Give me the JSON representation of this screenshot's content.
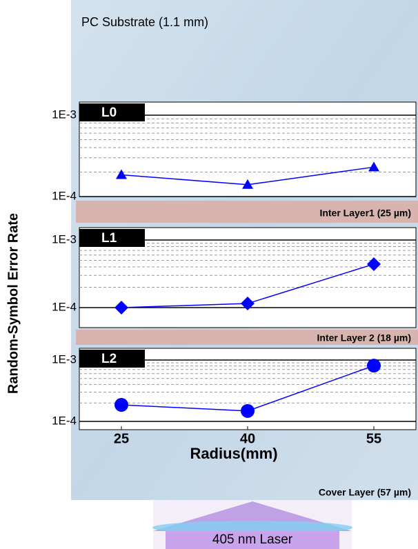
{
  "substrate_label": "PC Substrate (1.1 mm)",
  "y_label": "Random-Symbol Error Rate",
  "inter_layer_labels": [
    "Inter Layer1 (25 µm)",
    "Inter Layer 2 (18 µm)"
  ],
  "cover_label": "Cover Layer (57 µm)",
  "laser_label": "405 nm Laser",
  "chart_data": [
    {
      "type": "line",
      "title": "L0",
      "marker": "triangle",
      "x": [
        25,
        40,
        55
      ],
      "series": [
        {
          "color": "#0000ff",
          "values": [
            0.000185,
            0.00014,
            0.00023
          ]
        }
      ],
      "xlim": [
        20,
        60
      ],
      "ylim": [
        0.0001,
        0.001
      ],
      "log_y": true,
      "yticks": [
        {
          "value": 0.0001,
          "label": "1E-4"
        },
        {
          "value": 0.001,
          "label": "1E-3"
        }
      ],
      "minor_yticks": [
        0.0002,
        0.0003,
        0.0004,
        0.0005,
        0.0006,
        0.0007,
        0.0008,
        0.0009
      ],
      "grid": true
    },
    {
      "type": "line",
      "title": "L1",
      "marker": "diamond",
      "x": [
        25,
        40,
        55
      ],
      "series": [
        {
          "color": "#0000ff",
          "values": [
            0.0001,
            0.000115,
            0.00044
          ]
        }
      ],
      "xlim": [
        20,
        60
      ],
      "ylim": [
        0.0001,
        0.001
      ],
      "log_y": true,
      "yticks": [
        {
          "value": 0.0001,
          "label": "1E-4"
        },
        {
          "value": 0.001,
          "label": "1E-3"
        }
      ],
      "minor_yticks": [
        0.0002,
        0.0003,
        0.0004,
        0.0005,
        0.0006,
        0.0007,
        0.0008,
        0.0009
      ],
      "grid": true
    },
    {
      "type": "line",
      "title": "L2",
      "marker": "circle",
      "x": [
        25,
        40,
        55
      ],
      "series": [
        {
          "color": "#0000ff",
          "values": [
            0.000186,
            0.000148,
            0.00081
          ]
        }
      ],
      "xlim": [
        20,
        60
      ],
      "ylim": [
        0.0001,
        0.001
      ],
      "log_y": true,
      "yticks": [
        {
          "value": 0.0001,
          "label": "1E-4"
        },
        {
          "value": 0.001,
          "label": "1E-3"
        }
      ],
      "minor_yticks": [
        0.0002,
        0.0003,
        0.0004,
        0.0005,
        0.0006,
        0.0007,
        0.0008,
        0.0009
      ],
      "grid": true,
      "xticks": [
        25,
        40,
        55
      ],
      "xlabel": "Radius(mm)"
    }
  ]
}
